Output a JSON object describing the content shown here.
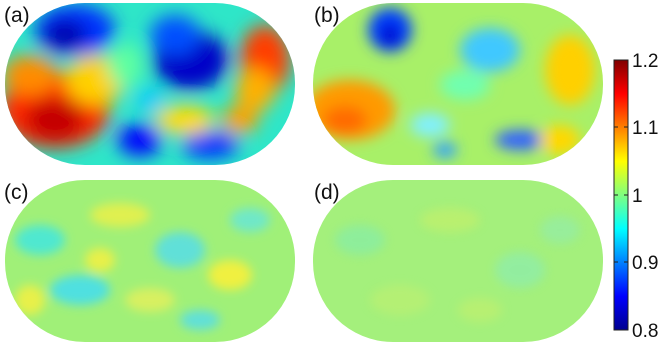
{
  "panels": [
    {
      "label": "(a)",
      "variation": "strong"
    },
    {
      "label": "(b)",
      "variation": "moderate"
    },
    {
      "label": "(c)",
      "variation": "weak"
    },
    {
      "label": "(d)",
      "variation": "very-weak"
    }
  ],
  "colorbar": {
    "ticks": [
      "1.2",
      "1.1",
      "1",
      "0.9",
      "0.8"
    ],
    "range": [
      0.8,
      1.2
    ],
    "colormap": "jet",
    "colors": [
      "#00008f",
      "#0000ff",
      "#00ffff",
      "#ffff00",
      "#ff0000",
      "#800000"
    ]
  }
}
